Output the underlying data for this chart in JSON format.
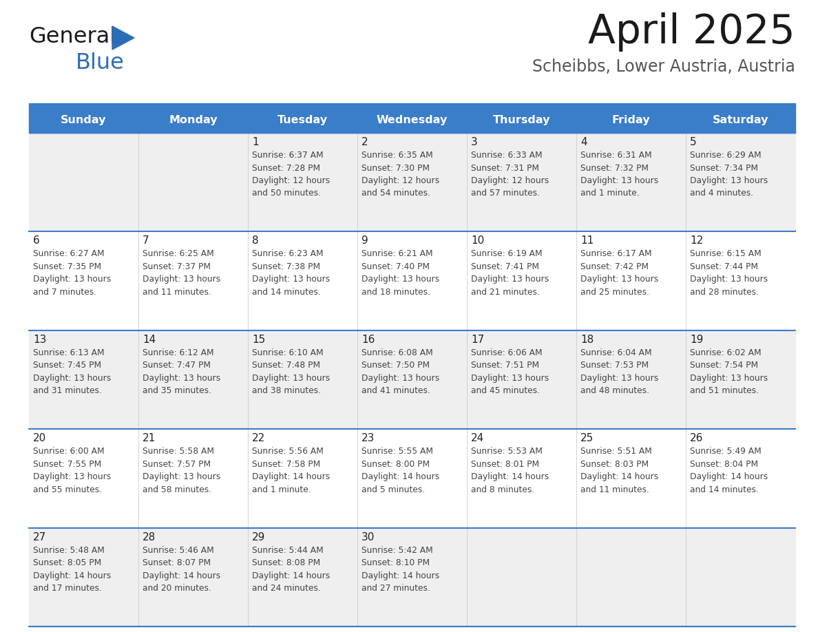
{
  "title": "April 2025",
  "subtitle": "Scheibbs, Lower Austria, Austria",
  "header_color": "#3A7DC9",
  "header_text_color": "#FFFFFF",
  "cell_bg_odd": "#EFEFEF",
  "cell_bg_even": "#FFFFFF",
  "text_color": "#333333",
  "border_color": "#3A7DC9",
  "days_of_week": [
    "Sunday",
    "Monday",
    "Tuesday",
    "Wednesday",
    "Thursday",
    "Friday",
    "Saturday"
  ],
  "calendar_data": [
    [
      {
        "day": "",
        "info": ""
      },
      {
        "day": "",
        "info": ""
      },
      {
        "day": "1",
        "info": "Sunrise: 6:37 AM\nSunset: 7:28 PM\nDaylight: 12 hours\nand 50 minutes."
      },
      {
        "day": "2",
        "info": "Sunrise: 6:35 AM\nSunset: 7:30 PM\nDaylight: 12 hours\nand 54 minutes."
      },
      {
        "day": "3",
        "info": "Sunrise: 6:33 AM\nSunset: 7:31 PM\nDaylight: 12 hours\nand 57 minutes."
      },
      {
        "day": "4",
        "info": "Sunrise: 6:31 AM\nSunset: 7:32 PM\nDaylight: 13 hours\nand 1 minute."
      },
      {
        "day": "5",
        "info": "Sunrise: 6:29 AM\nSunset: 7:34 PM\nDaylight: 13 hours\nand 4 minutes."
      }
    ],
    [
      {
        "day": "6",
        "info": "Sunrise: 6:27 AM\nSunset: 7:35 PM\nDaylight: 13 hours\nand 7 minutes."
      },
      {
        "day": "7",
        "info": "Sunrise: 6:25 AM\nSunset: 7:37 PM\nDaylight: 13 hours\nand 11 minutes."
      },
      {
        "day": "8",
        "info": "Sunrise: 6:23 AM\nSunset: 7:38 PM\nDaylight: 13 hours\nand 14 minutes."
      },
      {
        "day": "9",
        "info": "Sunrise: 6:21 AM\nSunset: 7:40 PM\nDaylight: 13 hours\nand 18 minutes."
      },
      {
        "day": "10",
        "info": "Sunrise: 6:19 AM\nSunset: 7:41 PM\nDaylight: 13 hours\nand 21 minutes."
      },
      {
        "day": "11",
        "info": "Sunrise: 6:17 AM\nSunset: 7:42 PM\nDaylight: 13 hours\nand 25 minutes."
      },
      {
        "day": "12",
        "info": "Sunrise: 6:15 AM\nSunset: 7:44 PM\nDaylight: 13 hours\nand 28 minutes."
      }
    ],
    [
      {
        "day": "13",
        "info": "Sunrise: 6:13 AM\nSunset: 7:45 PM\nDaylight: 13 hours\nand 31 minutes."
      },
      {
        "day": "14",
        "info": "Sunrise: 6:12 AM\nSunset: 7:47 PM\nDaylight: 13 hours\nand 35 minutes."
      },
      {
        "day": "15",
        "info": "Sunrise: 6:10 AM\nSunset: 7:48 PM\nDaylight: 13 hours\nand 38 minutes."
      },
      {
        "day": "16",
        "info": "Sunrise: 6:08 AM\nSunset: 7:50 PM\nDaylight: 13 hours\nand 41 minutes."
      },
      {
        "day": "17",
        "info": "Sunrise: 6:06 AM\nSunset: 7:51 PM\nDaylight: 13 hours\nand 45 minutes."
      },
      {
        "day": "18",
        "info": "Sunrise: 6:04 AM\nSunset: 7:53 PM\nDaylight: 13 hours\nand 48 minutes."
      },
      {
        "day": "19",
        "info": "Sunrise: 6:02 AM\nSunset: 7:54 PM\nDaylight: 13 hours\nand 51 minutes."
      }
    ],
    [
      {
        "day": "20",
        "info": "Sunrise: 6:00 AM\nSunset: 7:55 PM\nDaylight: 13 hours\nand 55 minutes."
      },
      {
        "day": "21",
        "info": "Sunrise: 5:58 AM\nSunset: 7:57 PM\nDaylight: 13 hours\nand 58 minutes."
      },
      {
        "day": "22",
        "info": "Sunrise: 5:56 AM\nSunset: 7:58 PM\nDaylight: 14 hours\nand 1 minute."
      },
      {
        "day": "23",
        "info": "Sunrise: 5:55 AM\nSunset: 8:00 PM\nDaylight: 14 hours\nand 5 minutes."
      },
      {
        "day": "24",
        "info": "Sunrise: 5:53 AM\nSunset: 8:01 PM\nDaylight: 14 hours\nand 8 minutes."
      },
      {
        "day": "25",
        "info": "Sunrise: 5:51 AM\nSunset: 8:03 PM\nDaylight: 14 hours\nand 11 minutes."
      },
      {
        "day": "26",
        "info": "Sunrise: 5:49 AM\nSunset: 8:04 PM\nDaylight: 14 hours\nand 14 minutes."
      }
    ],
    [
      {
        "day": "27",
        "info": "Sunrise: 5:48 AM\nSunset: 8:05 PM\nDaylight: 14 hours\nand 17 minutes."
      },
      {
        "day": "28",
        "info": "Sunrise: 5:46 AM\nSunset: 8:07 PM\nDaylight: 14 hours\nand 20 minutes."
      },
      {
        "day": "29",
        "info": "Sunrise: 5:44 AM\nSunset: 8:08 PM\nDaylight: 14 hours\nand 24 minutes."
      },
      {
        "day": "30",
        "info": "Sunrise: 5:42 AM\nSunset: 8:10 PM\nDaylight: 14 hours\nand 27 minutes."
      },
      {
        "day": "",
        "info": ""
      },
      {
        "day": "",
        "info": ""
      },
      {
        "day": "",
        "info": ""
      }
    ]
  ],
  "logo_color_general": "#1a1a1a",
  "logo_color_blue": "#2D6DB5"
}
